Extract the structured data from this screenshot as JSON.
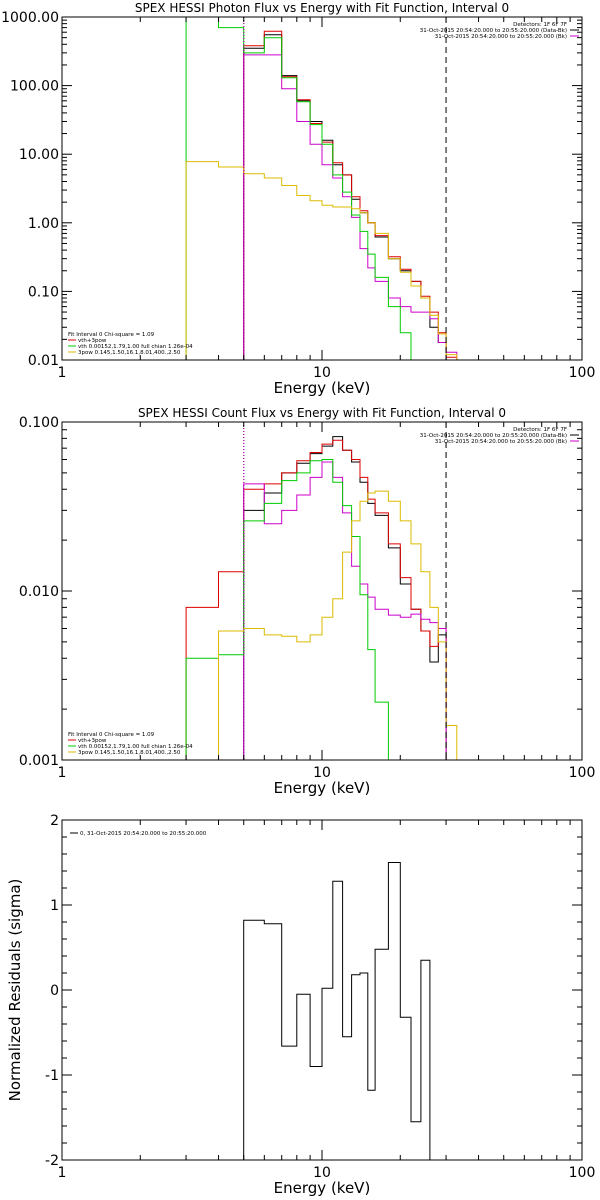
{
  "chart_data": [
    {
      "type": "line",
      "title": "SPEX HESSI Photon Flux vs Energy with Fit Function, Interval 0",
      "xlabel": "Energy (keV)",
      "ylabel": "",
      "xscale": "log",
      "yscale": "log",
      "xlim": [
        1,
        100
      ],
      "ylim": [
        0.01,
        1000
      ],
      "x_ticks": [
        "1",
        "10",
        "100"
      ],
      "y_ticks": [
        "0.01",
        "0.10",
        "1.00",
        "10.00",
        "100.00",
        "1000.00"
      ],
      "y_tick_values": [
        0.01,
        0.1,
        1,
        10,
        100,
        1000
      ],
      "vlines": [
        {
          "x": 5.0,
          "style": "dotted",
          "color": "#000000"
        },
        {
          "x": 5.0,
          "style": "dotted",
          "color": "#cc00cc"
        },
        {
          "x": 30.0,
          "style": "dashed",
          "color": "#000000"
        }
      ],
      "header_lines": [
        "Detectors: 1F 6F 7F",
        "31-Oct-2015 20:54:20.000 to 20:55:20.000 (Data-Bk)",
        "31-Oct-2015 20:54:20.000 to 20:55:20.000 (Bk)"
      ],
      "header_colors": [
        "#000000",
        "#000000",
        "#cc00cc"
      ],
      "legend_lines": [
        "Fit Interval 0   Chi-square = 1.09",
        "vth+3pow",
        "vth 0.00152,1.79,1.00  full chian 1.26e-04",
        "3pow 0.145,1.50,16.1,8.01,400.,2.50"
      ],
      "legend_colors": [
        "",
        "#dd0000",
        "#00cc00",
        "#ddbb00"
      ],
      "edges": [
        3.0,
        4.0,
        5.0,
        6.0,
        7.0,
        8.0,
        9.0,
        10.0,
        11.0,
        12.0,
        13.0,
        14.0,
        15.0,
        16.0,
        18.0,
        20.0,
        22.0,
        24.0,
        26.0,
        28.0,
        30.0,
        33.0
      ],
      "series": [
        {
          "color": "#000000",
          "values": [
            null,
            null,
            350,
            550,
            140,
            60,
            30,
            16,
            7,
            5,
            2.2,
            1.4,
            1.0,
            0.62,
            0.3,
            0.2,
            0.14,
            0.08,
            0.03,
            0.018,
            0.01
          ]
        },
        {
          "color": "#dd0000",
          "values": [
            null,
            null,
            380,
            620,
            135,
            62,
            28,
            15,
            7.5,
            5,
            2.4,
            1.5,
            1.0,
            0.65,
            0.32,
            0.21,
            0.14,
            0.085,
            0.05,
            0.025,
            0.011
          ]
        },
        {
          "color": "#cc00cc",
          "values": [
            null,
            null,
            280,
            280,
            90,
            30,
            14,
            7,
            4.5,
            2.4,
            1.2,
            0.42,
            0.22,
            0.14,
            0.08,
            0.06,
            0.05,
            0.05,
            0.04,
            0.018,
            0.013
          ]
        },
        {
          "color": "#00cc00",
          "values": [
            50000,
            700,
            300,
            500,
            130,
            58,
            27,
            14,
            5,
            2.8,
            1.3,
            0.75,
            0.35,
            0.16,
            0.06,
            0.025,
            0.01,
            null,
            null,
            null,
            null
          ]
        },
        {
          "color": "#ddbb00",
          "values": [
            7.8,
            6.5,
            5.2,
            4.5,
            3.5,
            2.5,
            2.1,
            1.8,
            1.7,
            1.7,
            1.6,
            1.4,
            1.0,
            0.7,
            0.3,
            0.19,
            0.12,
            0.08,
            0.045,
            0.024,
            0.012
          ]
        }
      ]
    },
    {
      "type": "line",
      "title": "SPEX HESSI Count Flux vs Energy with Fit Function, Interval 0",
      "xlabel": "Energy (keV)",
      "ylabel": "",
      "xscale": "log",
      "yscale": "log",
      "xlim": [
        1,
        100
      ],
      "ylim": [
        0.001,
        0.1
      ],
      "x_ticks": [
        "1",
        "10",
        "100"
      ],
      "y_ticks": [
        "0.001",
        "0.010",
        "0.100"
      ],
      "y_tick_values": [
        0.001,
        0.01,
        0.1
      ],
      "vlines": [
        {
          "x": 5.0,
          "style": "dotted",
          "color": "#000000"
        },
        {
          "x": 5.0,
          "style": "dotted",
          "color": "#cc00cc"
        },
        {
          "x": 30.0,
          "style": "dashed",
          "color": "#000000"
        }
      ],
      "header_lines": [
        "Detectors: 1F 6F 7F",
        "31-Oct-2015 20:54:20.000 to 20:55:20.000 (Data-Bk)",
        "31-Oct-2015 20:54:20.000 to 20:55:20.000 (Bk)"
      ],
      "header_colors": [
        "#000000",
        "#000000",
        "#cc00cc"
      ],
      "legend_lines": [
        "Fit Interval 0   Chi-square = 1.09",
        "vth+3pow",
        "vth 0.00152,1.79,1.00  full chian 1.26e-04",
        "3pow 0.145,1.50,16.1,8.01,400.,2.50"
      ],
      "legend_colors": [
        "",
        "#dd0000",
        "#00cc00",
        "#ddbb00"
      ],
      "edges": [
        3.0,
        4.0,
        5.0,
        6.0,
        7.0,
        8.0,
        9.0,
        10.0,
        11.0,
        12.0,
        13.0,
        14.0,
        15.0,
        16.0,
        18.0,
        20.0,
        22.0,
        24.0,
        26.0,
        28.0,
        30.0,
        33.0
      ],
      "series": [
        {
          "color": "#000000",
          "values": [
            null,
            null,
            0.03,
            0.038,
            0.05,
            0.057,
            0.065,
            0.072,
            0.082,
            0.068,
            0.058,
            0.044,
            0.033,
            0.028,
            0.018,
            0.011,
            0.0078,
            0.0058,
            0.0038,
            0.0055,
            null
          ]
        },
        {
          "color": "#dd0000",
          "values": [
            0.008,
            0.013,
            0.04,
            0.043,
            0.05,
            0.059,
            0.066,
            0.074,
            0.078,
            0.068,
            0.06,
            0.047,
            0.035,
            0.029,
            0.019,
            0.012,
            0.0078,
            0.0058,
            0.0047,
            0.006,
            null
          ]
        },
        {
          "color": "#cc00cc",
          "values": [
            null,
            null,
            0.043,
            0.025,
            0.03,
            0.037,
            0.047,
            0.058,
            0.047,
            0.029,
            0.014,
            0.011,
            0.0092,
            0.0078,
            0.0072,
            0.007,
            0.0073,
            0.0068,
            0.0065,
            0.006,
            null
          ]
        },
        {
          "color": "#00cc00",
          "values": [
            0.004,
            0.0042,
            0.026,
            0.033,
            0.045,
            0.05,
            0.059,
            0.06,
            0.044,
            0.032,
            0.021,
            0.0095,
            0.0045,
            0.0022,
            0.001,
            null,
            null,
            null,
            null,
            null,
            null
          ]
        },
        {
          "color": "#ddbb00",
          "values": [
            null,
            0.0058,
            0.006,
            0.0055,
            0.0054,
            0.005,
            0.0055,
            0.007,
            0.009,
            0.017,
            0.026,
            0.034,
            0.038,
            0.039,
            0.034,
            0.026,
            0.019,
            0.013,
            0.008,
            0.005,
            0.0016
          ]
        }
      ]
    },
    {
      "type": "line",
      "title": "",
      "xlabel": "Energy (keV)",
      "ylabel": "Normalized Residuals (sigma)",
      "xscale": "log",
      "yscale": "linear",
      "xlim": [
        1,
        100
      ],
      "ylim": [
        -2,
        2
      ],
      "x_ticks": [
        "1",
        "10",
        "100"
      ],
      "y_ticks": [
        "-2",
        "-1",
        "0",
        "1",
        "2"
      ],
      "y_tick_values": [
        -2,
        -1,
        0,
        1,
        2
      ],
      "header_lines": [],
      "header_colors": [],
      "legend_lines": [
        "0, 31-Oct-2015 20:54:20.000 to 20:55:20.000"
      ],
      "legend_colors": [
        "#000000"
      ],
      "vlines": [],
      "edges": [
        5.0,
        6.0,
        7.0,
        8.0,
        9.0,
        10.0,
        11.0,
        12.0,
        13.0,
        14.0,
        15.0,
        16.0,
        18.0,
        20.0,
        22.0,
        24.0,
        26.0,
        28.0,
        30.0
      ],
      "series": [
        {
          "color": "#000000",
          "values": [
            0.82,
            0.78,
            -0.66,
            -0.05,
            -0.9,
            0.02,
            1.28,
            -0.55,
            0.18,
            0.2,
            -1.18,
            0.48,
            1.5,
            -0.32,
            -1.55,
            0.35,
            null,
            null
          ]
        }
      ]
    }
  ]
}
